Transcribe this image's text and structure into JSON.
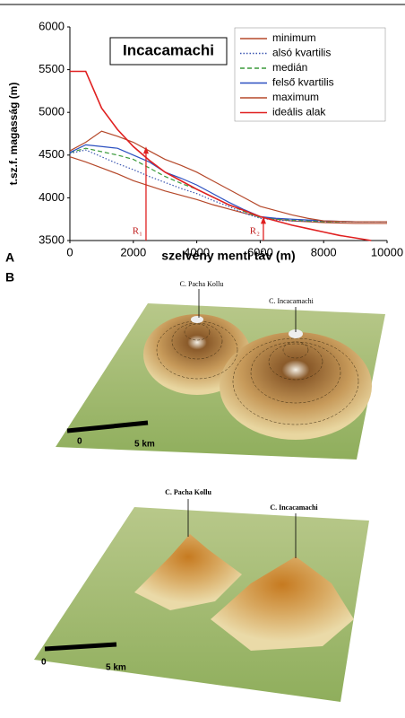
{
  "chart_data": {
    "type": "line",
    "title": "Incacamachi",
    "x_label": "szelvény menti táv (m)",
    "y_label": "t.sz.f. magasság (m)",
    "x": [
      0,
      500,
      1000,
      1500,
      2000,
      2500,
      3000,
      3500,
      4000,
      4500,
      5000,
      5500,
      6000,
      6500,
      7000,
      7500,
      8000,
      8500,
      9000,
      9500,
      10000
    ],
    "xlim": [
      0,
      10000
    ],
    "ylim": [
      3500,
      6000
    ],
    "xticks": [
      0,
      2000,
      4000,
      6000,
      8000,
      10000
    ],
    "yticks": [
      3500,
      4000,
      4500,
      5000,
      5500,
      6000
    ],
    "legend": "upper right",
    "series": [
      {
        "name": "minimum",
        "color": "#b5482a",
        "style": "solid",
        "values": [
          4480,
          4420,
          4350,
          4280,
          4200,
          4140,
          4080,
          4030,
          3980,
          3920,
          3870,
          3820,
          3780,
          3750,
          3730,
          3720,
          3710,
          3705,
          3700,
          3700,
          3700
        ]
      },
      {
        "name": "alsó kvartilis",
        "color": "#3a55b0",
        "style": "dotted",
        "values": [
          4520,
          4560,
          4480,
          4400,
          4330,
          4250,
          4180,
          4110,
          4050,
          3970,
          3900,
          3820,
          3760,
          3740,
          3730,
          3725,
          3720,
          3720,
          3720,
          3720,
          3720
        ]
      },
      {
        "name": "medián",
        "color": "#3a9a3a",
        "style": "dashed",
        "values": [
          4530,
          4580,
          4540,
          4500,
          4450,
          4350,
          4250,
          4170,
          4100,
          4010,
          3920,
          3840,
          3770,
          3750,
          3740,
          3730,
          3720,
          3720,
          3720,
          3720,
          3720
        ]
      },
      {
        "name": "felső kvartilis",
        "color": "#2a4fc0",
        "style": "solid",
        "values": [
          4530,
          4620,
          4600,
          4580,
          4500,
          4420,
          4300,
          4230,
          4150,
          4050,
          3950,
          3860,
          3780,
          3760,
          3750,
          3740,
          3730,
          3725,
          3720,
          3720,
          3720
        ]
      },
      {
        "name": "maximum",
        "color": "#b5482a",
        "style": "solid",
        "values": [
          4550,
          4650,
          4780,
          4720,
          4650,
          4550,
          4450,
          4380,
          4300,
          4200,
          4100,
          4000,
          3900,
          3850,
          3800,
          3760,
          3730,
          3725,
          3720,
          3720,
          3720
        ]
      },
      {
        "name": "ideális alak",
        "color": "#e02020",
        "style": "solid",
        "values": [
          5480,
          5480,
          5050,
          4800,
          4600,
          4440,
          4300,
          4200,
          4100,
          4010,
          3920,
          3850,
          3780,
          3730,
          3680,
          3640,
          3600,
          3560,
          3530,
          3500,
          null
        ]
      }
    ],
    "annotations": [
      {
        "text": "R₁",
        "x": 2400,
        "y": 4600
      },
      {
        "text": "R₂",
        "x": 6100,
        "y": 3780
      }
    ]
  },
  "panel_labels": [
    "A",
    "B"
  ],
  "renders": [
    {
      "peaks": [
        "C. Pacha Kollu",
        "C. Incacamachi"
      ],
      "scale": [
        "0",
        "5 km"
      ]
    },
    {
      "peaks": [
        "C. Pacha Kollu",
        "C. Incacamachi"
      ],
      "scale": [
        "0",
        "5 km"
      ]
    }
  ]
}
